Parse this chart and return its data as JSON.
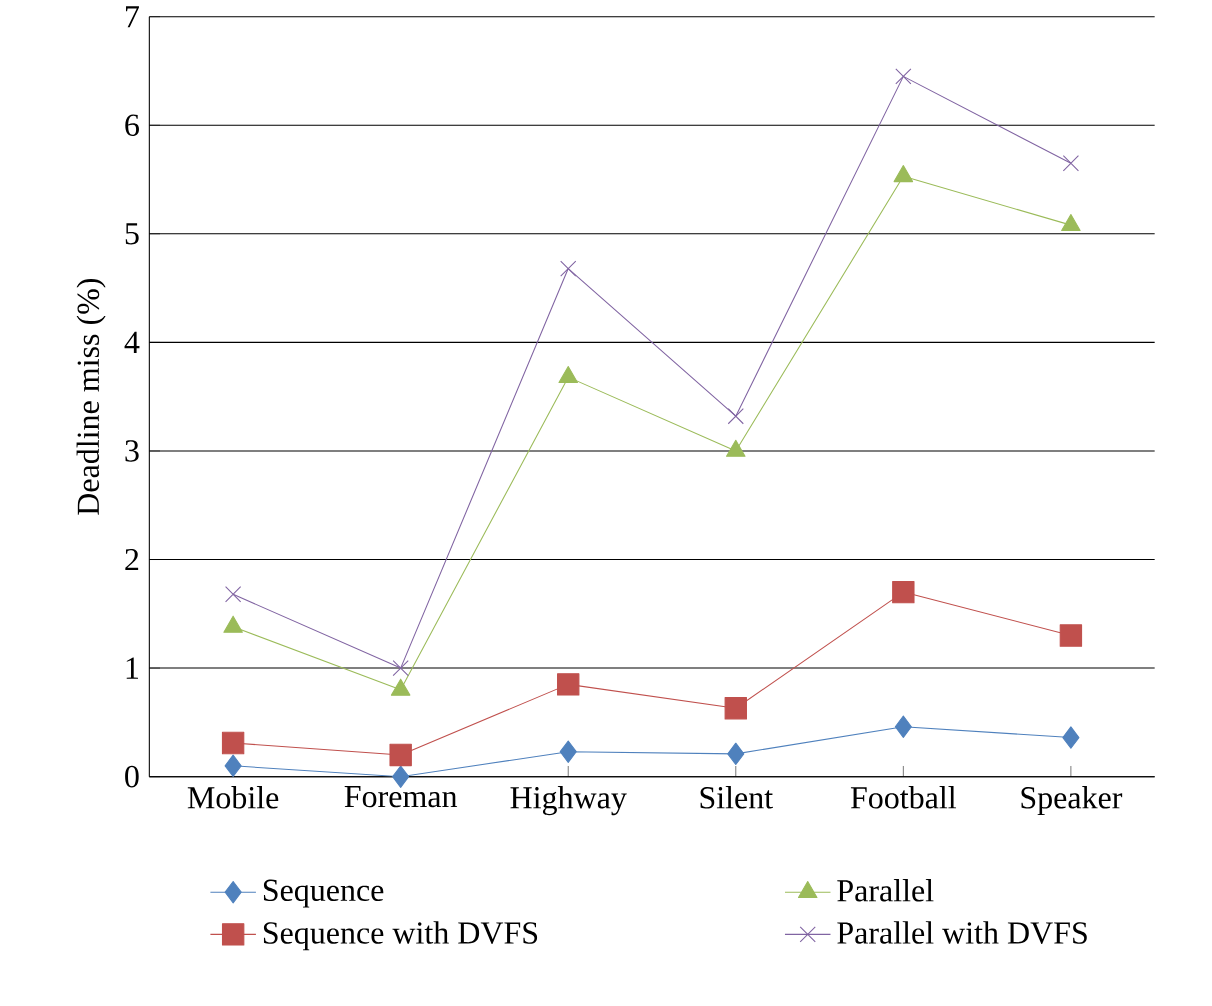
{
  "chart_data": {
    "type": "line",
    "ylabel": "Deadline miss (%)",
    "categories": [
      "Mobile",
      "Foreman",
      "Highway",
      "Silent",
      "Football",
      "Speaker"
    ],
    "series": [
      {
        "name": "Sequence",
        "color": "#4f81bd",
        "marker": "diamond",
        "values": [
          0.1,
          0,
          0.23,
          0.21,
          0.46,
          0.36
        ]
      },
      {
        "name": "Sequence with DVFS",
        "color": "#c0504d",
        "marker": "square",
        "values": [
          0.31,
          0.2,
          0.85,
          0.63,
          1.7,
          1.3
        ]
      },
      {
        "name": "Parallel",
        "color": "#9bbb59",
        "marker": "triangle",
        "values": [
          1.38,
          0.8,
          3.68,
          3.0,
          5.53,
          5.08
        ]
      },
      {
        "name": "Parallel with DVFS",
        "color": "#8064a2",
        "marker": "cross",
        "values": [
          1.68,
          1.0,
          4.68,
          3.32,
          6.45,
          5.65
        ]
      }
    ],
    "ylim": [
      0,
      7
    ],
    "yticks": [
      0,
      1,
      2,
      3,
      4,
      5,
      6,
      7
    ],
    "grid": "y",
    "legend": "bottom",
    "line_style": "solid"
  }
}
